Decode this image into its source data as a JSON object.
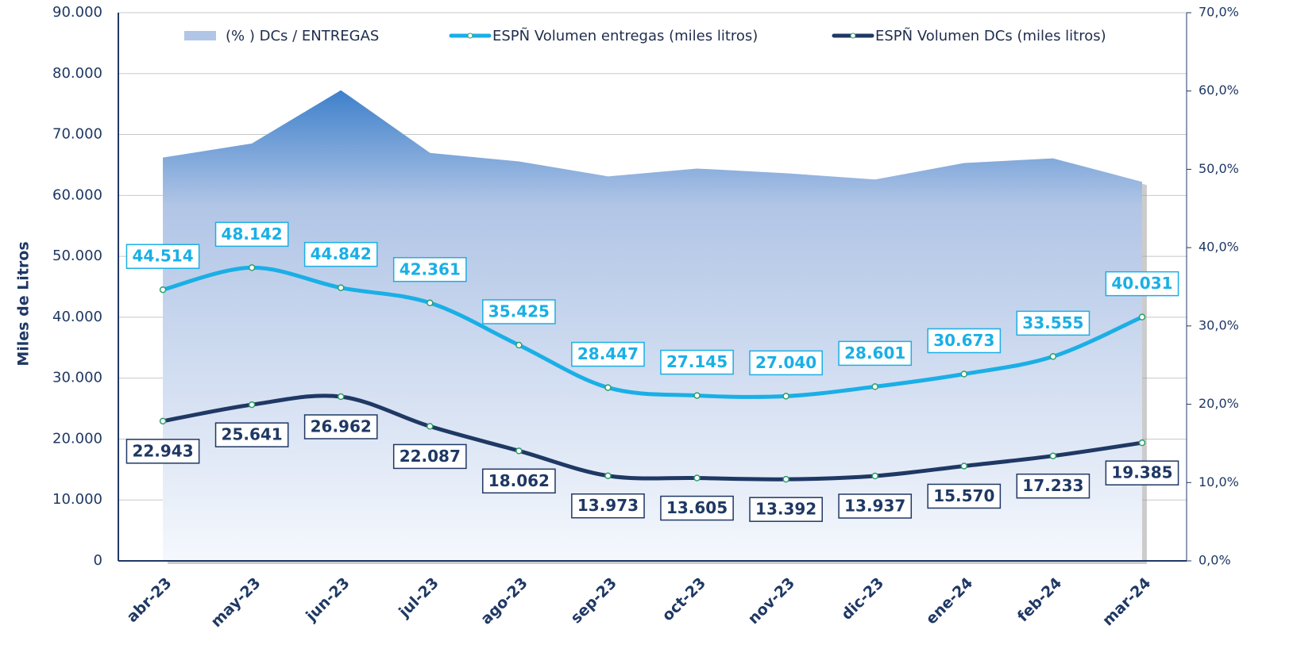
{
  "chart_data": {
    "type": "line",
    "categories": [
      "abr-23",
      "may-23",
      "jun-23",
      "jul-23",
      "ago-23",
      "sep-23",
      "oct-23",
      "nov-23",
      "dic-23",
      "ene-24",
      "feb-24",
      "mar-24"
    ],
    "y_label": "Miles de Litros",
    "ylim": [
      0,
      90000
    ],
    "yticks": [
      0,
      {
        "value": 10000,
        "label": "10.000"
      },
      {
        "value": 20000,
        "label": "20.000"
      },
      {
        "value": 30000,
        "label": "30.000"
      },
      {
        "value": 40000,
        "label": "40.000"
      },
      {
        "value": 50000,
        "label": "50.000"
      },
      {
        "value": 60000,
        "label": "60.000"
      },
      {
        "value": 70000,
        "label": "70.000"
      },
      {
        "value": 80000,
        "label": "80.000"
      },
      {
        "value": 90000,
        "label": "90.000"
      }
    ],
    "y2lim": [
      0,
      70
    ],
    "y2ticks": [
      {
        "value": 0,
        "label": "0,0%"
      },
      {
        "value": 10,
        "label": "10,0%"
      },
      {
        "value": 20,
        "label": "20,0%"
      },
      {
        "value": 30,
        "label": "30,0%"
      },
      {
        "value": 40,
        "label": "40,0%"
      },
      {
        "value": 50,
        "label": "50,0%"
      },
      {
        "value": 60,
        "label": "60,0%"
      },
      {
        "value": 70,
        "label": "70,0%"
      }
    ],
    "grid": true,
    "legend": "top",
    "series": [
      {
        "name": "(% ) DCs / ENTREGAS",
        "type": "area",
        "axis": "y2",
        "color": "#6f9bd6",
        "values": [
          51.5,
          53.3,
          60.1,
          52.1,
          51.0,
          49.1,
          50.1,
          49.5,
          48.7,
          50.8,
          51.4,
          48.4
        ]
      },
      {
        "name": "ESPÑ Volumen entregas (miles litros)",
        "type": "line",
        "color": "#1aafe6",
        "values": [
          44514,
          48142,
          44842,
          42361,
          35425,
          28447,
          27145,
          27040,
          28601,
          30673,
          33555,
          40031
        ],
        "value_labels": [
          "44.514",
          "48.142",
          "44.842",
          "42.361",
          "35.425",
          "28.447",
          "27.145",
          "27.040",
          "28.601",
          "30.673",
          "33.555",
          "40.031"
        ]
      },
      {
        "name": "ESPÑ Volumen DCs (miles litros)",
        "type": "line",
        "color": "#1f3864",
        "values": [
          22943,
          25641,
          26962,
          22087,
          18062,
          13973,
          13605,
          13392,
          13937,
          15570,
          17233,
          19385
        ],
        "value_labels": [
          "22.943",
          "25.641",
          "26.962",
          "22.087",
          "18.062",
          "13.973",
          "13.605",
          "13.392",
          "13.937",
          "15.570",
          "17.233",
          "19.385"
        ]
      }
    ]
  }
}
